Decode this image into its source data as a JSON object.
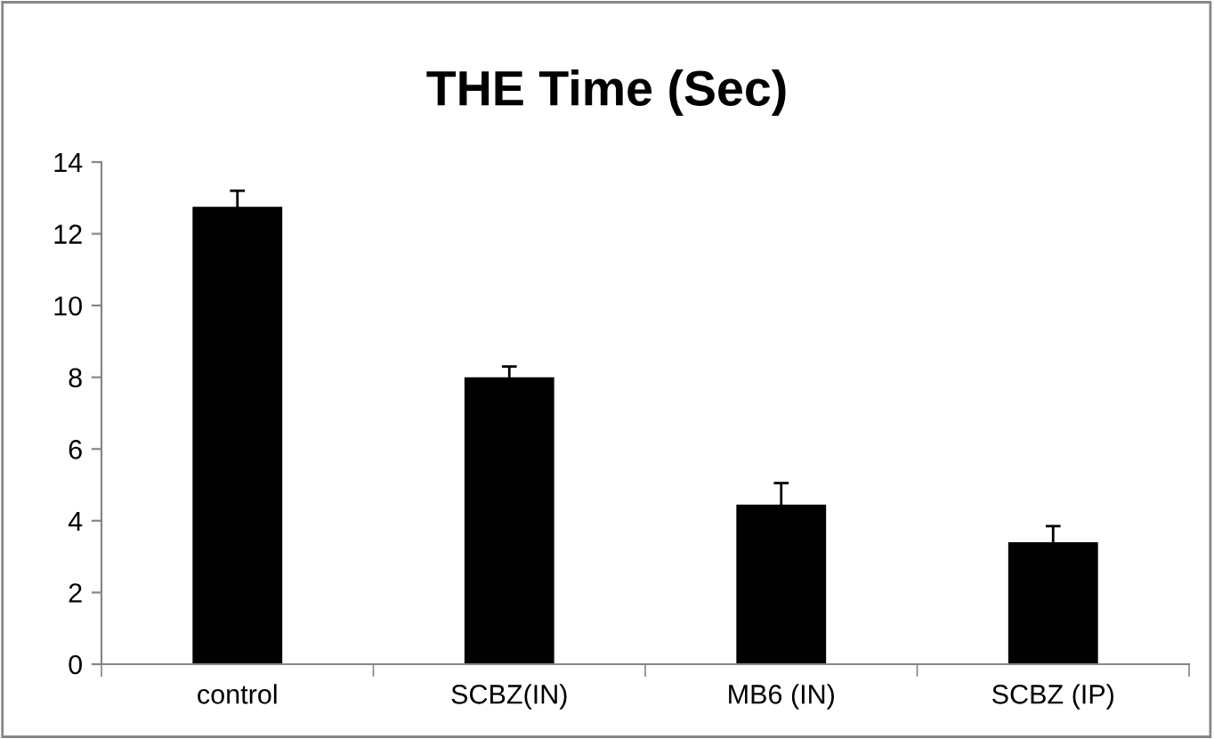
{
  "chart_data": {
    "type": "bar",
    "title": "THE Time (Sec)",
    "categories": [
      "control",
      "SCBZ(IN)",
      "MB6 (IN)",
      "SCBZ (IP)"
    ],
    "values": [
      12.75,
      8.0,
      4.45,
      3.4
    ],
    "errors": [
      0.45,
      0.3,
      0.6,
      0.45
    ],
    "color": "#000000",
    "ylim": [
      0,
      14
    ],
    "yticks": [
      0,
      2,
      4,
      6,
      8,
      10,
      12,
      14
    ],
    "grid": false,
    "legend": false
  }
}
